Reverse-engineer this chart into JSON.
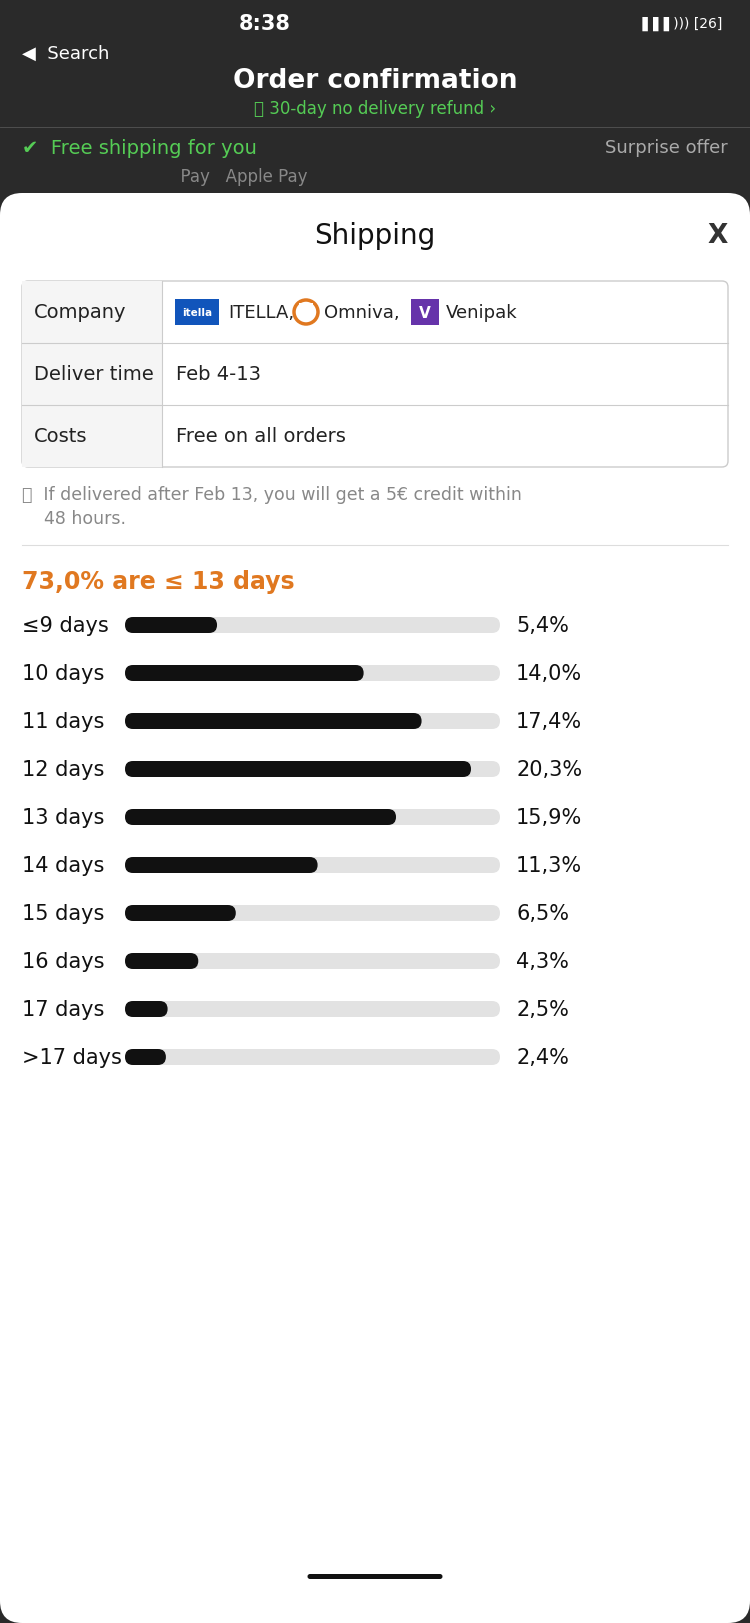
{
  "bg_color_top": "#2a2a2a",
  "modal_bg": "#ffffff",
  "status_time": "8:38",
  "back_label": "Search",
  "page_title": "Order confirmation",
  "subtitle": "30-day no delivery refund ›",
  "free_shipping": "Free shipping for you",
  "surprise_offer": "Surprise offer",
  "modal_title": "Shipping",
  "table_rows": [
    {
      "label": "Company",
      "value": ""
    },
    {
      "label": "Deliver time",
      "value": "Feb 4-13"
    },
    {
      "label": "Costs",
      "value": "Free on all orders"
    }
  ],
  "info_line1": "ⓘ  If delivered after Feb 13, you will get a 5€ credit within",
  "info_line2": "    48 hours.",
  "highlight_text": "73,0% are ≤ 13 days",
  "highlight_color": "#e07820",
  "bars": [
    {
      "label": "≤9 days",
      "value": 5.4,
      "display": "5,4%"
    },
    {
      "label": "10 days",
      "value": 14.0,
      "display": "14,0%"
    },
    {
      "label": "11 days",
      "value": 17.4,
      "display": "17,4%"
    },
    {
      "label": "12 days",
      "value": 20.3,
      "display": "20,3%"
    },
    {
      "label": "13 days",
      "value": 15.9,
      "display": "15,9%"
    },
    {
      "label": "14 days",
      "value": 11.3,
      "display": "11,3%"
    },
    {
      "label": "15 days",
      "value": 6.5,
      "display": "6,5%"
    },
    {
      "label": "16 days",
      "value": 4.3,
      "display": "4,3%"
    },
    {
      "label": "17 days",
      "value": 2.5,
      "display": "2,5%"
    },
    {
      "label": ">17 days",
      "value": 2.4,
      "display": "2,4%"
    }
  ],
  "bar_max_value": 22,
  "bar_color": "#111111",
  "bar_bg_color": "#e2e2e2",
  "label_fontsize": 15,
  "pct_fontsize": 15,
  "bottom_pill_color": "#111111",
  "itella_bg": "#1155bb",
  "omniva_border": "#e07820",
  "venipak_bg": "#6633aa"
}
